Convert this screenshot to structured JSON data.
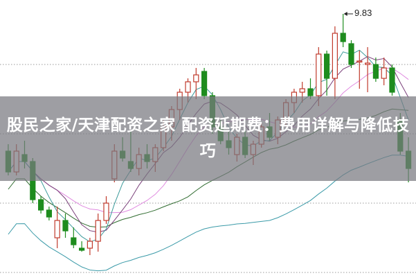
{
  "title": "股民之家/天津配资之家 配资延期费：费用详解与降低技巧",
  "chart_data": {
    "type": "candlestick",
    "title": "",
    "xlabel": "",
    "ylabel": "",
    "grid": "horizontal dotted",
    "annotations": [
      {
        "label": "9.83",
        "kind": "max-high"
      }
    ],
    "colors": {
      "up": "#c0392b",
      "down": "#1e8c1e",
      "ma5": "#3a9a9a",
      "ma10": "#7a3f7a",
      "ma20": "#e08ae0",
      "ma30": "#2f6b2f",
      "ma60": "#3a9aa8"
    },
    "ohlc": [
      [
        7.85,
        7.95,
        7.5,
        7.55
      ],
      [
        7.55,
        7.95,
        7.5,
        7.85
      ],
      [
        7.8,
        8.0,
        7.6,
        7.7
      ],
      [
        7.7,
        7.75,
        7.1,
        7.15
      ],
      [
        7.15,
        7.2,
        6.95,
        7.0
      ],
      [
        7.0,
        7.05,
        6.85,
        6.9
      ],
      [
        6.6,
        7.05,
        6.45,
        6.85
      ],
      [
        6.85,
        6.95,
        6.6,
        6.7
      ],
      [
        6.6,
        6.75,
        6.45,
        6.5
      ],
      [
        6.45,
        6.55,
        6.4,
        6.42
      ],
      [
        6.45,
        6.6,
        6.35,
        6.55
      ],
      [
        6.55,
        6.95,
        6.4,
        6.85
      ],
      [
        6.85,
        7.2,
        6.8,
        7.1
      ],
      [
        7.45,
        7.95,
        7.4,
        7.85
      ],
      [
        7.85,
        8.05,
        7.7,
        7.75
      ],
      [
        7.7,
        8.15,
        7.55,
        7.6
      ],
      [
        7.6,
        7.9,
        7.5,
        7.8
      ],
      [
        7.8,
        7.95,
        7.6,
        7.7
      ],
      [
        7.7,
        7.95,
        7.55,
        7.9
      ],
      [
        7.9,
        8.3,
        7.85,
        8.2
      ],
      [
        8.2,
        8.5,
        8.0,
        8.45
      ],
      [
        8.45,
        8.75,
        8.3,
        8.7
      ],
      [
        8.7,
        8.9,
        8.55,
        8.85
      ],
      [
        8.85,
        9.05,
        8.6,
        8.95
      ],
      [
        9.0,
        9.05,
        8.6,
        8.65
      ],
      [
        8.65,
        8.7,
        8.1,
        8.2
      ],
      [
        8.2,
        8.3,
        7.95,
        8.0
      ],
      [
        8.0,
        8.15,
        7.8,
        7.9
      ],
      [
        7.8,
        8.1,
        7.7,
        8.05
      ],
      [
        8.05,
        8.15,
        7.75,
        7.8
      ],
      [
        7.8,
        8.0,
        7.65,
        7.95
      ],
      [
        7.95,
        8.25,
        7.9,
        8.2
      ],
      [
        8.2,
        8.4,
        8.0,
        8.05
      ],
      [
        8.05,
        8.35,
        7.95,
        8.3
      ],
      [
        8.3,
        8.6,
        8.2,
        8.55
      ],
      [
        8.55,
        8.75,
        8.4,
        8.7
      ],
      [
        8.7,
        8.85,
        8.55,
        8.75
      ],
      [
        8.75,
        8.9,
        8.6,
        8.65
      ],
      [
        8.65,
        9.35,
        8.5,
        9.25
      ],
      [
        9.25,
        9.3,
        8.65,
        8.9
      ],
      [
        8.9,
        9.65,
        8.6,
        9.55
      ],
      [
        9.55,
        9.83,
        9.35,
        9.43
      ],
      [
        9.4,
        9.45,
        9.05,
        9.1
      ],
      [
        9.15,
        9.3,
        8.75,
        9.15
      ],
      [
        9.1,
        9.35,
        8.7,
        9.12
      ],
      [
        9.1,
        9.2,
        8.85,
        8.9
      ],
      [
        8.9,
        9.2,
        8.8,
        9.05
      ],
      [
        9.05,
        9.1,
        8.65,
        8.7
      ],
      [
        8.3,
        8.4,
        7.8,
        7.85
      ],
      [
        7.85,
        8.05,
        7.4,
        7.6
      ]
    ]
  }
}
